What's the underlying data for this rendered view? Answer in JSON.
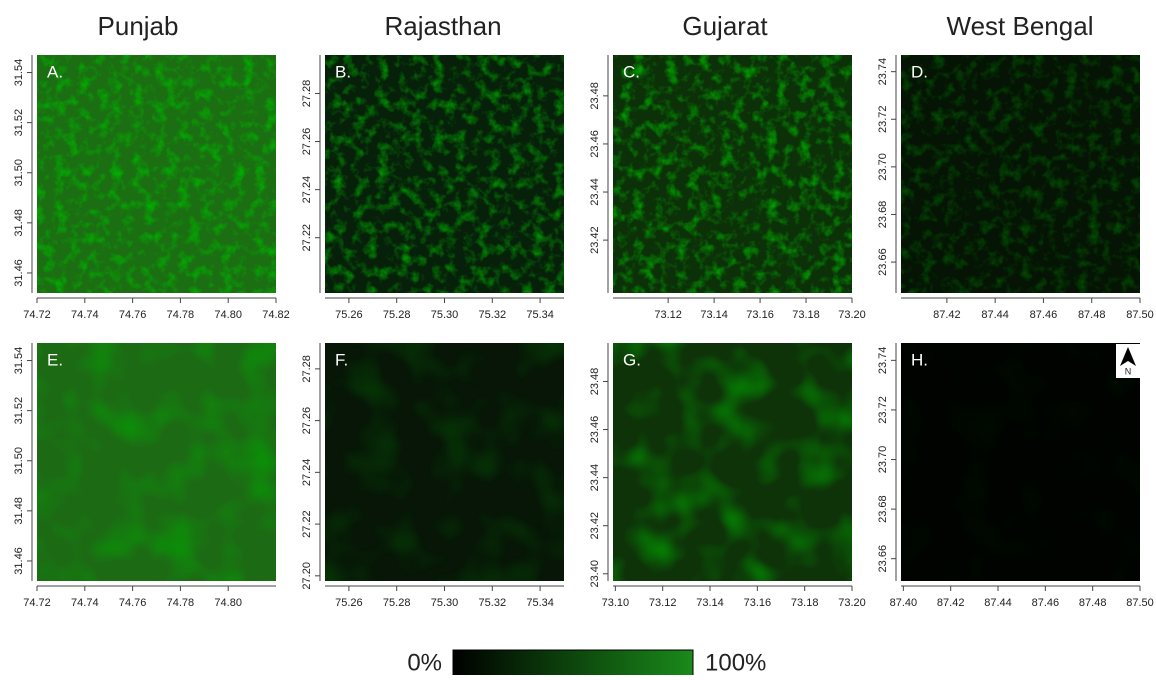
{
  "columns": [
    "Punjab",
    "Rajasthan",
    "Gujarat",
    "West Bengal"
  ],
  "panels": [
    {
      "label": "A.",
      "xlim": [
        74.72,
        74.82
      ],
      "ylim": [
        31.452,
        31.547
      ],
      "xticks": [
        "74.72",
        "74.74",
        "74.76",
        "74.78",
        "74.80",
        "74.82"
      ],
      "yticks": [
        "31.46",
        "31.48",
        "31.50",
        "31.52",
        "31.54"
      ]
    },
    {
      "label": "B.",
      "xlim": [
        75.25,
        75.35
      ],
      "ylim": [
        27.197,
        27.296
      ],
      "xticks": [
        "75.26",
        "75.28",
        "75.30",
        "75.32",
        "75.34"
      ],
      "yticks": [
        "27.22",
        "27.24",
        "27.26",
        "27.28"
      ]
    },
    {
      "label": "C.",
      "xlim": [
        73.096,
        73.2
      ],
      "ylim": [
        23.398,
        23.497
      ],
      "xticks": [
        "73.12",
        "73.14",
        "73.16",
        "73.18",
        "73.20"
      ],
      "yticks": [
        "23.42",
        "23.44",
        "23.46",
        "23.48"
      ]
    },
    {
      "label": "D.",
      "xlim": [
        87.401,
        87.5
      ],
      "ylim": [
        23.647,
        23.747
      ],
      "xticks": [
        "87.42",
        "87.44",
        "87.46",
        "87.48",
        "87.50"
      ],
      "yticks": [
        "23.66",
        "23.68",
        "23.70",
        "23.72",
        "23.74"
      ]
    },
    {
      "label": "E.",
      "xlim": [
        74.72,
        74.82
      ],
      "ylim": [
        31.452,
        31.547
      ],
      "xticks": [
        "74.72",
        "74.74",
        "74.76",
        "74.78",
        "74.80"
      ],
      "yticks": [
        "31.46",
        "31.48",
        "31.50",
        "31.52",
        "31.54"
      ]
    },
    {
      "label": "F.",
      "xlim": [
        75.25,
        75.35
      ],
      "ylim": [
        27.198,
        27.29
      ],
      "xticks": [
        "75.26",
        "75.28",
        "75.30",
        "75.32",
        "75.34"
      ],
      "yticks": [
        "27.20",
        "27.22",
        "27.24",
        "27.26",
        "27.28"
      ]
    },
    {
      "label": "G.",
      "xlim": [
        73.099,
        73.2
      ],
      "ylim": [
        23.397,
        23.496
      ],
      "xticks": [
        "73.10",
        "73.12",
        "73.14",
        "73.16",
        "73.18",
        "73.20"
      ],
      "yticks": [
        "23.40",
        "23.42",
        "23.44",
        "23.46",
        "23.48"
      ]
    },
    {
      "label": "H.",
      "xlim": [
        87.399,
        87.5
      ],
      "ylim": [
        23.651,
        23.747
      ],
      "xticks": [
        "87.40",
        "87.42",
        "87.44",
        "87.46",
        "87.48",
        "87.50"
      ],
      "yticks": [
        "23.66",
        "23.68",
        "23.70",
        "23.72",
        "23.74"
      ]
    }
  ],
  "north_label": "N",
  "legend": {
    "min_label": "0%",
    "max_label": "100%"
  }
}
